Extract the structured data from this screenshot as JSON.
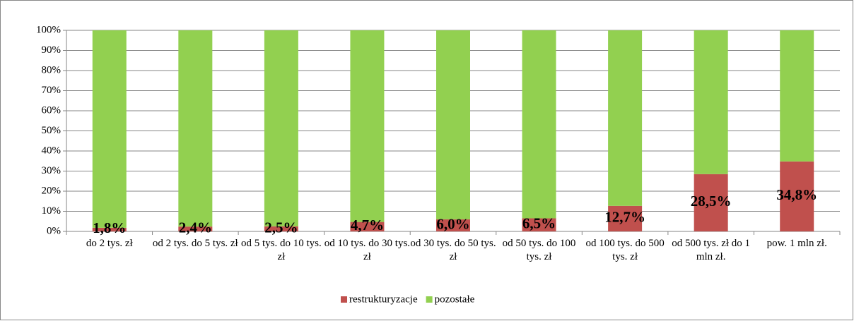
{
  "chart_data": {
    "type": "stacked_bar",
    "categories": [
      "do 2 tys. zł",
      "od 2 tys. do 5 tys. zł",
      "od 5 tys. do 10 tys. zł",
      "od 10 tys. do 30 tys. zł",
      "od 30 tys. do 50 tys. zł",
      "od 50 tys. do 100 tys. zł",
      "od 100 tys. do 500 tys. zł",
      "od 500 tys. zł do 1 mln zł.",
      "pow. 1 mln zł."
    ],
    "series": [
      {
        "name": "restrukturyzacje",
        "color": "#c0504d",
        "values": [
          1.8,
          2.4,
          2.5,
          4.7,
          6.0,
          6.5,
          12.7,
          28.5,
          34.8
        ],
        "value_labels": [
          "1,8%",
          "2,4%",
          "2,5%",
          "4,7%",
          "6,0%",
          "6,5%",
          "12,7%",
          "28,5%",
          "34,8%"
        ]
      },
      {
        "name": "pozostałe",
        "color": "#92d050",
        "values": [
          98.2,
          97.6,
          97.5,
          95.3,
          94.0,
          93.5,
          87.3,
          71.5,
          65.2
        ]
      }
    ],
    "ylim": [
      0,
      100
    ],
    "yticks": [
      {
        "value": 0,
        "label": "0%"
      },
      {
        "value": 10,
        "label": "10%"
      },
      {
        "value": 20,
        "label": "20%"
      },
      {
        "value": 30,
        "label": "30%"
      },
      {
        "value": 40,
        "label": "40%"
      },
      {
        "value": 50,
        "label": "50%"
      },
      {
        "value": 60,
        "label": "60%"
      },
      {
        "value": 70,
        "label": "70%"
      },
      {
        "value": 80,
        "label": "80%"
      },
      {
        "value": 90,
        "label": "90%"
      },
      {
        "value": 100,
        "label": "100%"
      }
    ],
    "grid": true,
    "legend": "bottom"
  }
}
